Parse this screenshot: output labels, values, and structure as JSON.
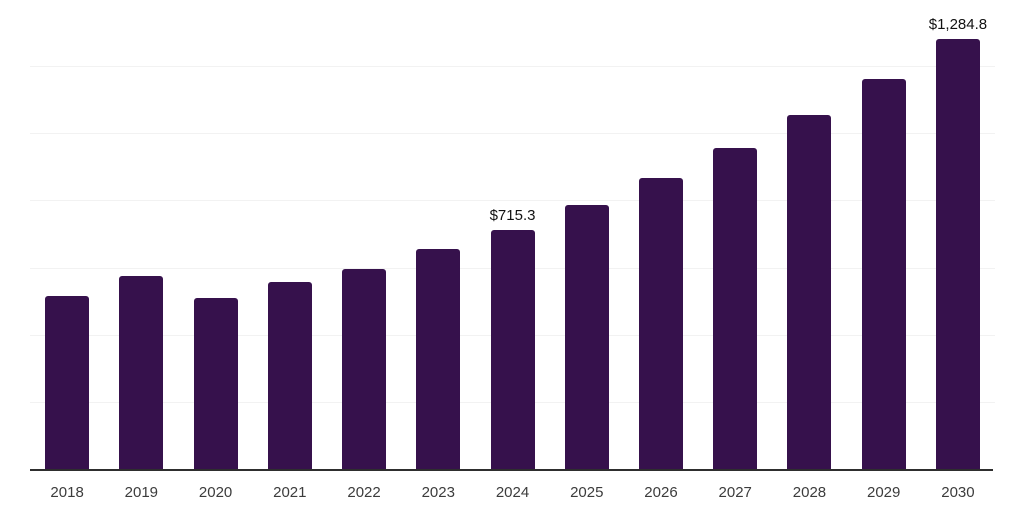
{
  "chart_data": {
    "type": "bar",
    "title": "",
    "xlabel": "",
    "ylabel": "",
    "categories": [
      "2018",
      "2019",
      "2020",
      "2021",
      "2022",
      "2023",
      "2024",
      "2025",
      "2026",
      "2027",
      "2028",
      "2029",
      "2030"
    ],
    "values": [
      518,
      578,
      512,
      560,
      598,
      658,
      715.3,
      788.6,
      869.5,
      958.6,
      1056.9,
      1165.3,
      1284.8
    ],
    "point_labels": [
      "",
      "",
      "",
      "",
      "",
      "",
      "$715.3",
      "",
      "",
      "",
      "",
      "",
      "$1,284.8"
    ],
    "ylim": [
      0,
      1400
    ],
    "gridline_step": 200,
    "grid": "horizontal",
    "legend": "none",
    "y_axis_labels_visible": false,
    "colors": {
      "bar": "#36114C",
      "axis_line": "#2e2e2e",
      "gridline": "#f2f2f2",
      "tick_label": "#3c3c3c",
      "data_label": "#121212",
      "background": "#ffffff"
    }
  }
}
